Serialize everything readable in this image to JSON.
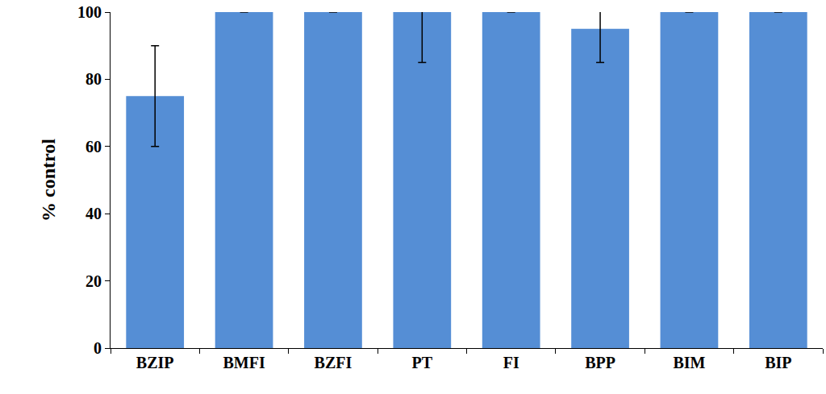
{
  "chart_data": {
    "type": "bar",
    "y_label": "% control",
    "categories": [
      "BZIP",
      "BMFI",
      "BZFI",
      "PT",
      "FI",
      "BPP",
      "BIM",
      "BIP"
    ],
    "values": [
      75,
      100,
      100,
      100,
      100,
      95,
      100,
      100
    ],
    "errors": [
      15,
      0,
      0,
      15,
      0,
      10,
      0,
      0
    ],
    "color": "#558ed5",
    "ylim": [
      0,
      100
    ],
    "yticks": [
      0,
      20,
      40,
      60,
      80,
      100
    ],
    "grid": false
  }
}
